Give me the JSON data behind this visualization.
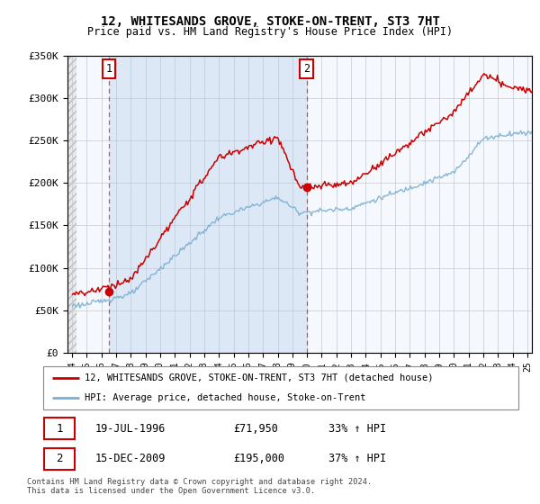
{
  "title": "12, WHITESANDS GROVE, STOKE-ON-TRENT, ST3 7HT",
  "subtitle": "Price paid vs. HM Land Registry's House Price Index (HPI)",
  "legend_line1": "12, WHITESANDS GROVE, STOKE-ON-TRENT, ST3 7HT (detached house)",
  "legend_line2": "HPI: Average price, detached house, Stoke-on-Trent",
  "annotation1_date": "19-JUL-1996",
  "annotation1_price": "£71,950",
  "annotation1_hpi": "33% ↑ HPI",
  "annotation2_date": "15-DEC-2009",
  "annotation2_price": "£195,000",
  "annotation2_hpi": "37% ↑ HPI",
  "footer": "Contains HM Land Registry data © Crown copyright and database right 2024.\nThis data is licensed under the Open Government Licence v3.0.",
  "red_color": "#cc0000",
  "blue_color": "#7bafd4",
  "ylim": [
    0,
    350000
  ],
  "yticks": [
    0,
    50000,
    100000,
    150000,
    200000,
    250000,
    300000,
    350000
  ],
  "ytick_labels": [
    "£0",
    "£50K",
    "£100K",
    "£150K",
    "£200K",
    "£250K",
    "£300K",
    "£350K"
  ],
  "point1_x": 1996.54,
  "point1_y": 71950,
  "point2_x": 2009.96,
  "point2_y": 195000,
  "xmin": 1993.7,
  "xmax": 2025.3,
  "hatch_end": 1994.3,
  "shade_start": 1996.54,
  "shade_end": 2009.96
}
